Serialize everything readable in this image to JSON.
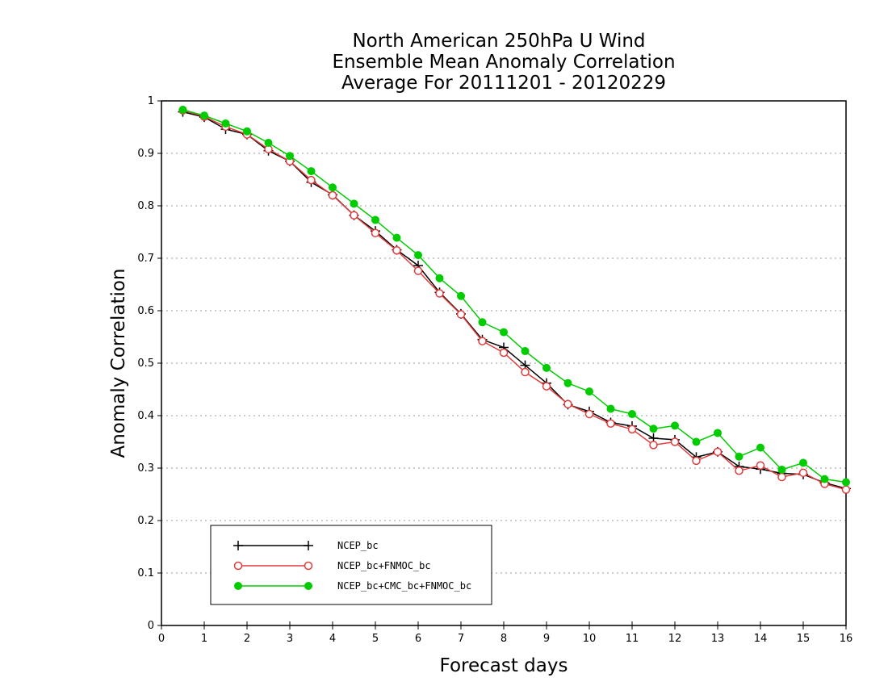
{
  "chart_data": {
    "type": "line",
    "title_lines": [
      "North American 250hPa U Wind",
      "Ensemble Mean Anomaly Correlation",
      "Average For 20111201 - 20120229"
    ],
    "xlabel": "Forecast days",
    "ylabel": "Anomaly Correlation",
    "xlim": [
      0,
      16
    ],
    "ylim": [
      0,
      1
    ],
    "x_ticks": [
      "0",
      "1",
      "2",
      "3",
      "4",
      "5",
      "6",
      "7",
      "8",
      "9",
      "10",
      "11",
      "12",
      "13",
      "14",
      "15",
      "16"
    ],
    "y_ticks": [
      "0",
      "0.1",
      "0.2",
      "0.3",
      "0.4",
      "0.5",
      "0.6",
      "0.7",
      "0.8",
      "0.9",
      "1"
    ],
    "grid": "horizontal dotted",
    "legend_position": "bottom-left",
    "x": [
      0.5,
      1,
      1.5,
      2,
      2.5,
      3,
      3.5,
      4,
      4.5,
      5,
      5.5,
      6,
      6.5,
      7,
      7.5,
      8,
      8.5,
      9,
      9.5,
      10,
      10.5,
      11,
      11.5,
      12,
      12.5,
      13,
      13.5,
      14,
      14.5,
      15,
      15.5,
      16
    ],
    "series": [
      {
        "name": "NCEP_bc",
        "color": "#000000",
        "marker": "plus",
        "values": [
          0.979,
          0.969,
          0.946,
          0.936,
          0.905,
          0.885,
          0.845,
          0.821,
          0.782,
          0.752,
          0.716,
          0.686,
          0.635,
          0.594,
          0.545,
          0.53,
          0.496,
          0.462,
          0.421,
          0.408,
          0.387,
          0.38,
          0.357,
          0.354,
          0.321,
          0.331,
          0.303,
          0.298,
          0.29,
          0.288,
          0.272,
          0.261
        ]
      },
      {
        "name": "NCEP_bc+FNMOC_bc",
        "color": "#e03c3c",
        "marker": "open-circle",
        "values": [
          0.982,
          0.97,
          0.951,
          0.936,
          0.908,
          0.885,
          0.849,
          0.82,
          0.782,
          0.748,
          0.715,
          0.676,
          0.633,
          0.593,
          0.542,
          0.52,
          0.483,
          0.456,
          0.422,
          0.403,
          0.385,
          0.374,
          0.344,
          0.35,
          0.314,
          0.331,
          0.295,
          0.305,
          0.283,
          0.291,
          0.27,
          0.259
        ]
      },
      {
        "name": "NCEP_bc+CMC_bc+FNMOC_bc",
        "color": "#00cc00",
        "marker": "filled-circle",
        "values": [
          0.983,
          0.972,
          0.957,
          0.942,
          0.92,
          0.895,
          0.866,
          0.835,
          0.804,
          0.773,
          0.739,
          0.706,
          0.662,
          0.628,
          0.578,
          0.559,
          0.523,
          0.491,
          0.462,
          0.446,
          0.413,
          0.403,
          0.375,
          0.381,
          0.35,
          0.367,
          0.322,
          0.339,
          0.297,
          0.31,
          0.279,
          0.273
        ]
      }
    ]
  }
}
